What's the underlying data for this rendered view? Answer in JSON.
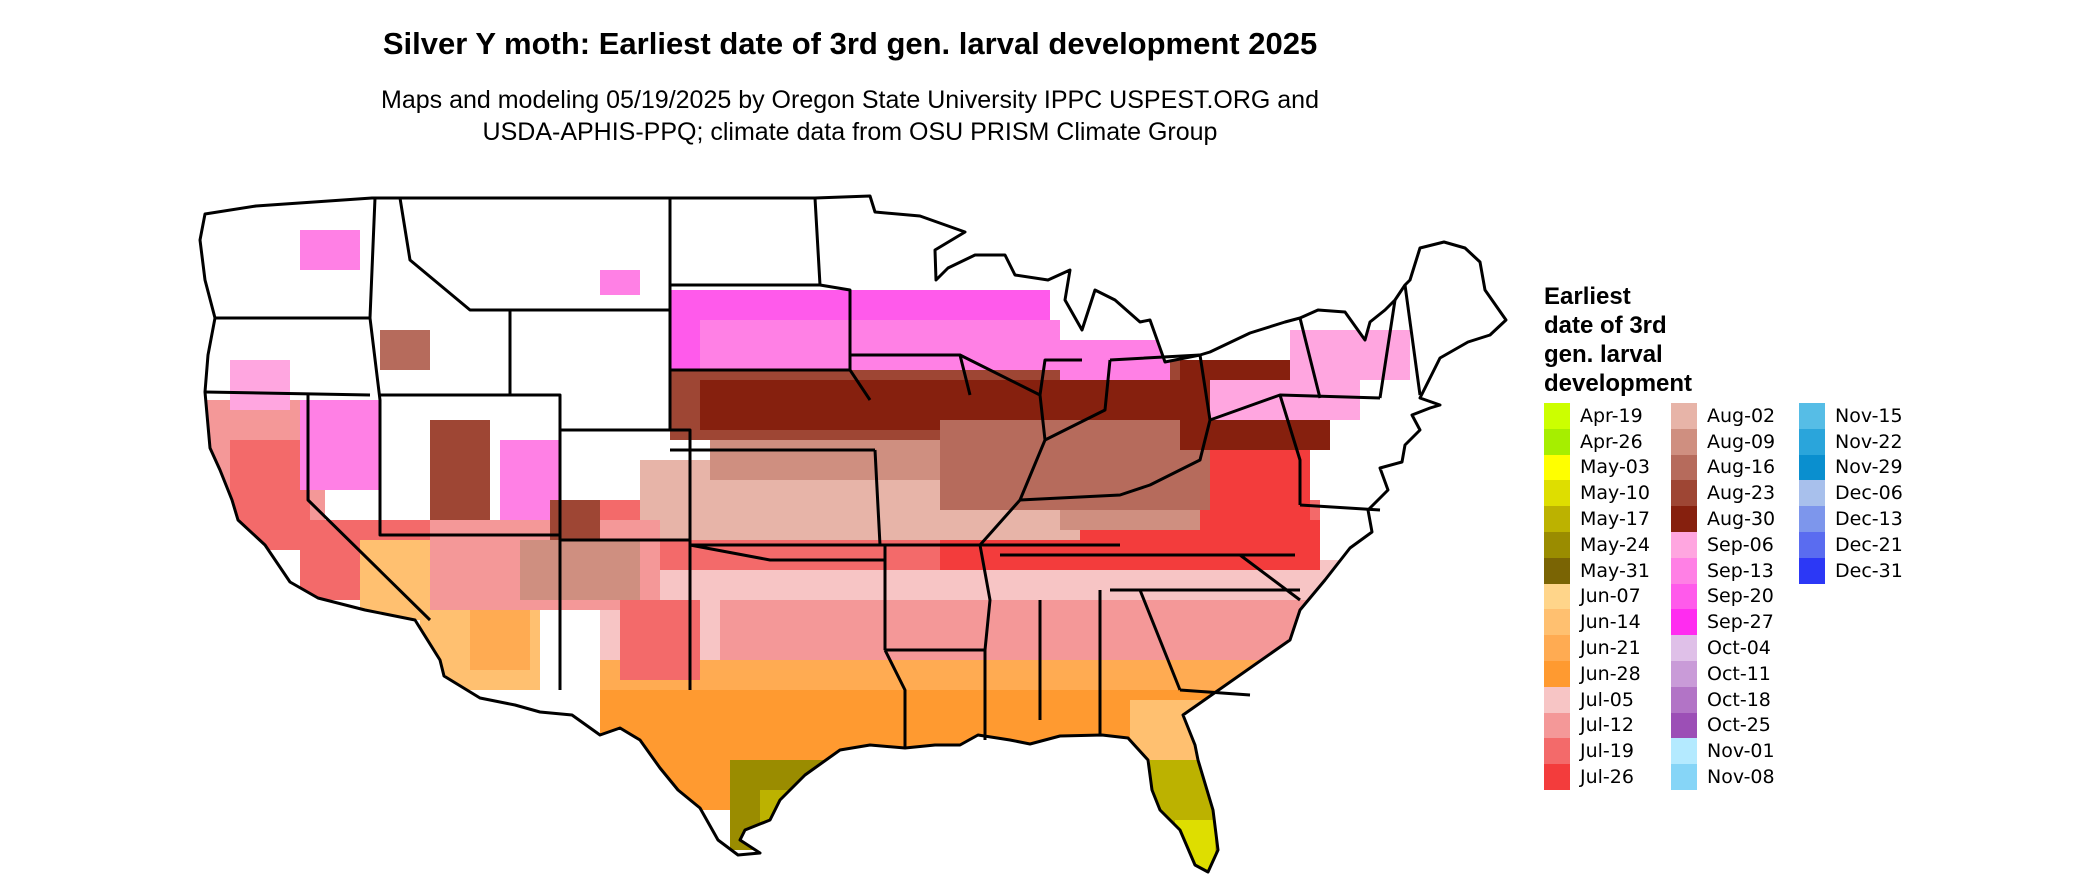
{
  "title": "Silver Y moth: Earliest date of 3rd gen. larval development 2025",
  "subtitle_line1": "Maps and modeling 05/19/2025 by Oregon State University IPPC USPEST.ORG and",
  "subtitle_line2": "USDA-APHIS-PPQ; climate data from OSU PRISM Climate Group",
  "legend": {
    "title_lines": [
      "Earliest",
      "date of 3rd",
      "gen. larval",
      "development"
    ],
    "columns": [
      [
        {
          "label": "Apr-19",
          "color": "#ccff00"
        },
        {
          "label": "Apr-26",
          "color": "#a6ee00"
        },
        {
          "label": "May-03",
          "color": "#ffff00"
        },
        {
          "label": "May-10",
          "color": "#dede00"
        },
        {
          "label": "May-17",
          "color": "#bcb200"
        },
        {
          "label": "May-24",
          "color": "#9a8c00"
        },
        {
          "label": "May-31",
          "color": "#7a6404"
        },
        {
          "label": "Jun-07",
          "color": "#ffd58a"
        },
        {
          "label": "Jun-14",
          "color": "#ffc070"
        },
        {
          "label": "Jun-21",
          "color": "#ffab52"
        },
        {
          "label": "Jun-28",
          "color": "#ff9a30"
        },
        {
          "label": "Jul-05",
          "color": "#f7c5c5"
        },
        {
          "label": "Jul-12",
          "color": "#f49898"
        },
        {
          "label": "Jul-19",
          "color": "#f36a6a"
        },
        {
          "label": "Jul-26",
          "color": "#f33c3c"
        }
      ],
      [
        {
          "label": "Aug-02",
          "color": "#e7b4a8"
        },
        {
          "label": "Aug-09",
          "color": "#cf8f80"
        },
        {
          "label": "Aug-16",
          "color": "#b66b5c"
        },
        {
          "label": "Aug-23",
          "color": "#9e4634"
        },
        {
          "label": "Aug-30",
          "color": "#86200e"
        },
        {
          "label": "Sep-06",
          "color": "#ffa6e0"
        },
        {
          "label": "Sep-13",
          "color": "#ff80e5"
        },
        {
          "label": "Sep-20",
          "color": "#ff5aeb"
        },
        {
          "label": "Sep-27",
          "color": "#ff2cf0"
        },
        {
          "label": "Oct-04",
          "color": "#dfc0e8"
        },
        {
          "label": "Oct-11",
          "color": "#c99bd8"
        },
        {
          "label": "Oct-18",
          "color": "#b274c6"
        },
        {
          "label": "Oct-25",
          "color": "#9c4fb6"
        },
        {
          "label": "Nov-01",
          "color": "#b4eaff"
        },
        {
          "label": "Nov-08",
          "color": "#86d5f7"
        }
      ],
      [
        {
          "label": "Nov-15",
          "color": "#56bde6"
        },
        {
          "label": "Nov-22",
          "color": "#2aa5db"
        },
        {
          "label": "Nov-29",
          "color": "#0a8fcf"
        },
        {
          "label": "Dec-06",
          "color": "#a8c0ec"
        },
        {
          "label": "Dec-13",
          "color": "#7d96ec"
        },
        {
          "label": "Dec-21",
          "color": "#5a6cf0"
        },
        {
          "label": "Dec-31",
          "color": "#2c38f6"
        }
      ]
    ]
  }
}
